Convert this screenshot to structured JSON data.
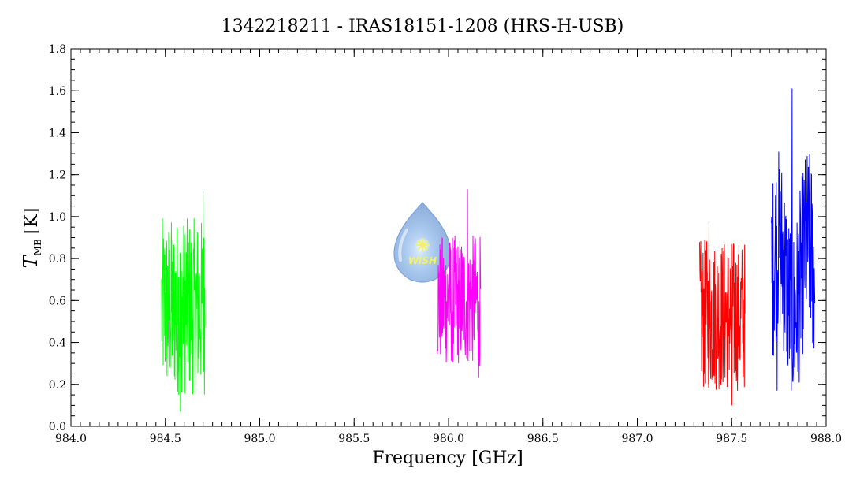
{
  "chart_data": {
    "type": "line",
    "title": "1342218211 - IRAS18151-1208 (HRS-H-USB)",
    "xlabel": "Frequency [GHz]",
    "ylabel": {
      "main": "T",
      "subscript": "MB",
      "unit": "[K]"
    },
    "xlim": [
      984.0,
      988.0
    ],
    "ylim": [
      0.0,
      1.8
    ],
    "xticks": [
      "984.0",
      "984.5",
      "985.0",
      "985.5",
      "986.0",
      "986.5",
      "987.0",
      "987.5",
      "988.0"
    ],
    "yticks": [
      "0.0",
      "0.2",
      "0.4",
      "0.6",
      "0.8",
      "1.0",
      "1.2",
      "1.4",
      "1.6",
      "1.8"
    ],
    "grid": false,
    "legend": "none",
    "series": [
      {
        "color": "#00ff00",
        "x_range": [
          984.48,
          984.71
        ],
        "mean": 0.57,
        "min": 0.07,
        "max": 1.12,
        "peak_x": 984.7,
        "min_x": 984.58
      },
      {
        "color": "#ff00ff",
        "x_range": [
          985.94,
          986.17
        ],
        "mean": 0.6,
        "min": 0.23,
        "max": 1.13,
        "peak_x": 986.1,
        "min_x": 986.16
      },
      {
        "color": "#ff0000",
        "x_range": [
          987.33,
          987.57
        ],
        "mean": 0.53,
        "min": 0.1,
        "max": 0.98,
        "peak_x": 987.38,
        "min_x": 987.5
      },
      {
        "color": "#0000ff",
        "x_range": [
          987.71,
          987.94
        ],
        "mean": 0.7,
        "min": 0.17,
        "max": 1.61,
        "peak_x": 987.82,
        "min_x": 987.74
      }
    ],
    "watermark": {
      "text": "WISH",
      "icon": "water-drop-star-icon"
    }
  }
}
